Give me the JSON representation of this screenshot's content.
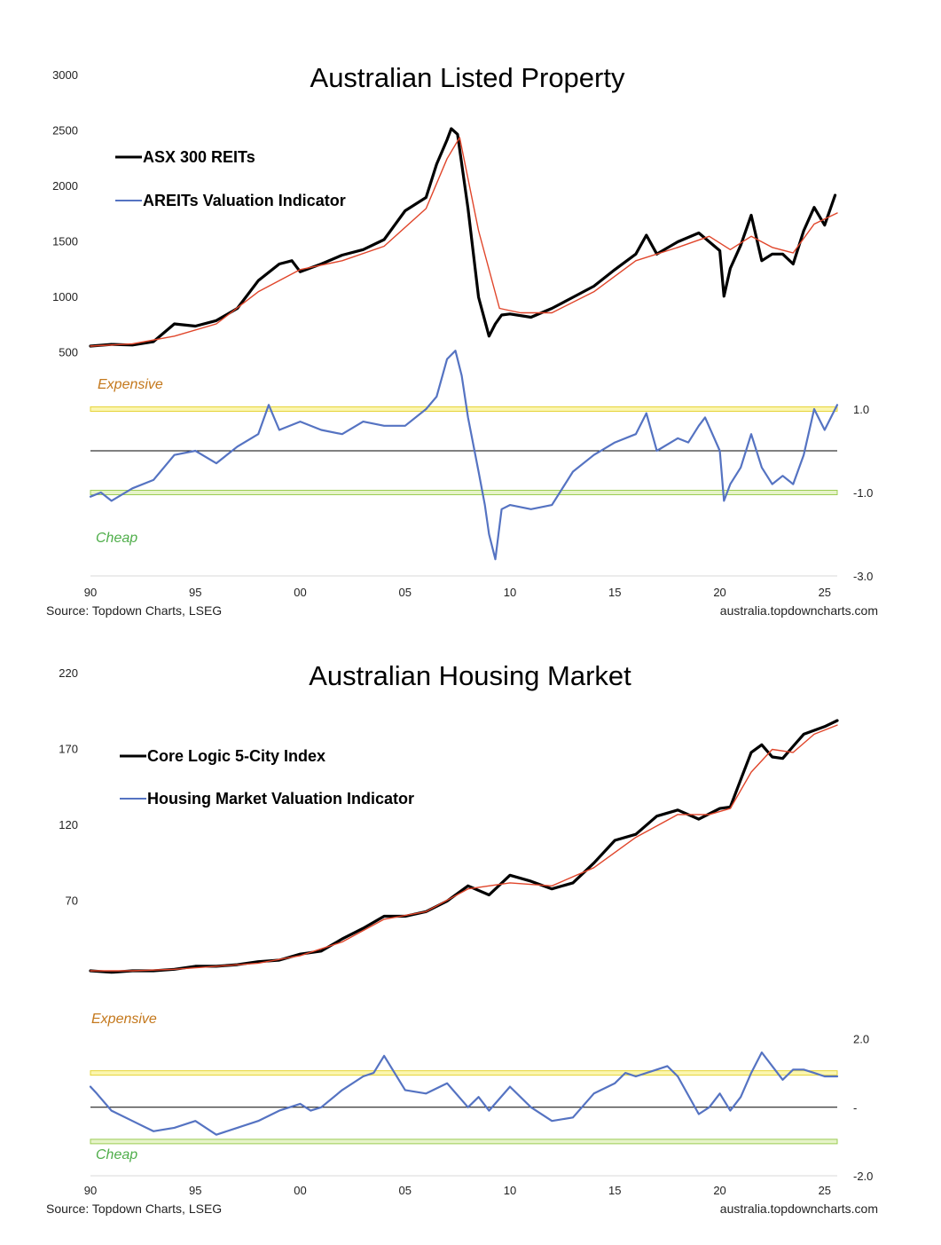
{
  "chart_data": [
    {
      "type": "line",
      "title": "Australian Listed Property",
      "x_ticks": [
        "90",
        "95",
        "00",
        "05",
        "10",
        "15",
        "20",
        "25"
      ],
      "x_range": [
        1990,
        2025.6
      ],
      "y_left_ticks": [
        "500",
        "1000",
        "1500",
        "2000",
        "2500",
        "3000"
      ],
      "y_left_range": [
        0,
        3000
      ],
      "y_right_ticks": [
        "1.0",
        "-1.0",
        "-3.0"
      ],
      "y_right_range": [
        -3,
        5
      ],
      "zones": {
        "expensive_label": "Expensive",
        "cheap_label": "Cheap",
        "expensive_level": 1.0,
        "cheap_level": -1.0
      },
      "legend": [
        "ASX 300 REITs",
        "AREITs Valuation Indicator"
      ],
      "series": [
        {
          "name": "ASX 300 REITs",
          "axis": "left",
          "x": [
            1990,
            1991,
            1992,
            1993,
            1994,
            1995,
            1996,
            1997,
            1998,
            1999,
            1999.6,
            2000,
            2001,
            2002,
            2003,
            2004,
            2005,
            2006,
            2006.5,
            2007,
            2007.2,
            2007.5,
            2008,
            2008.5,
            2009,
            2009.3,
            2009.6,
            2010,
            2011,
            2012,
            2013,
            2014,
            2015,
            2016,
            2016.5,
            2017,
            2018,
            2019,
            2020,
            2020.2,
            2020.5,
            2021,
            2021.5,
            2022,
            2022.5,
            2023,
            2023.5,
            2024,
            2024.5,
            2025,
            2025.5
          ],
          "values": [
            560,
            575,
            570,
            600,
            760,
            740,
            790,
            900,
            1150,
            1300,
            1330,
            1230,
            1300,
            1380,
            1430,
            1520,
            1780,
            1900,
            2200,
            2420,
            2520,
            2470,
            1800,
            1000,
            650,
            760,
            840,
            850,
            820,
            900,
            1000,
            1100,
            1250,
            1390,
            1560,
            1390,
            1500,
            1580,
            1420,
            1010,
            1260,
            1470,
            1740,
            1330,
            1390,
            1390,
            1300,
            1600,
            1810,
            1650,
            1920
          ]
        },
        {
          "name": "ASX 300 REITs trend",
          "axis": "left",
          "x": [
            1990,
            1992,
            1994,
            1996,
            1998,
            2000,
            2002,
            2004,
            2006,
            2007,
            2007.6,
            2008.5,
            2009.5,
            2010.5,
            2012,
            2014,
            2016,
            2018,
            2019.5,
            2020.5,
            2021.5,
            2022.5,
            2023.5,
            2024.5,
            2025.6
          ],
          "values": [
            560,
            580,
            650,
            760,
            1050,
            1250,
            1330,
            1460,
            1800,
            2250,
            2440,
            1600,
            900,
            860,
            860,
            1050,
            1330,
            1450,
            1550,
            1430,
            1550,
            1450,
            1400,
            1660,
            1760
          ]
        },
        {
          "name": "AREITs Valuation Indicator",
          "axis": "right",
          "x": [
            1990,
            1990.5,
            1991,
            1992,
            1993,
            1994,
            1995,
            1996,
            1997,
            1998,
            1998.5,
            1999,
            2000,
            2001,
            2002,
            2003,
            2004,
            2005,
            2006,
            2006.5,
            2007,
            2007.4,
            2007.7,
            2008,
            2008.5,
            2008.8,
            2009,
            2009.3,
            2009.6,
            2010,
            2011,
            2012,
            2013,
            2014,
            2015,
            2016,
            2016.5,
            2017,
            2018,
            2018.5,
            2019,
            2019.3,
            2020,
            2020.2,
            2020.5,
            2021,
            2021.5,
            2022,
            2022.5,
            2023,
            2023.5,
            2024,
            2024.5,
            2025,
            2025.6
          ],
          "values": [
            -1.1,
            -1.0,
            -1.2,
            -0.9,
            -0.7,
            -0.1,
            0.0,
            -0.3,
            0.1,
            0.4,
            1.1,
            0.5,
            0.7,
            0.5,
            0.4,
            0.7,
            0.6,
            0.6,
            1.0,
            1.3,
            2.2,
            2.4,
            1.8,
            0.8,
            -0.5,
            -1.3,
            -2.0,
            -2.6,
            -1.4,
            -1.3,
            -1.4,
            -1.3,
            -0.5,
            -0.1,
            0.2,
            0.4,
            0.9,
            0.0,
            0.3,
            0.2,
            0.6,
            0.8,
            0.0,
            -1.2,
            -0.8,
            -0.4,
            0.4,
            -0.4,
            -0.8,
            -0.6,
            -0.8,
            -0.1,
            1.0,
            0.5,
            1.1
          ]
        }
      ],
      "source": "Source: Topdown Charts, LSEG",
      "site": "australia.topdowncharts.com"
    },
    {
      "type": "line",
      "title": "Australian Housing Market",
      "x_ticks": [
        "90",
        "95",
        "00",
        "05",
        "10",
        "15",
        "20",
        "25"
      ],
      "x_range": [
        1990,
        2025.6
      ],
      "y_left_ticks": [
        "70",
        "120",
        "170",
        "220"
      ],
      "y_left_range": [
        0,
        220
      ],
      "y_right_ticks": [
        "2.0",
        "-",
        "-2.0"
      ],
      "y_right_range": [
        -2.0,
        6.0
      ],
      "zones": {
        "expensive_label": "Expensive",
        "cheap_label": "Cheap",
        "expensive_level": 1.0,
        "cheap_level": -1.0
      },
      "legend": [
        "Core Logic 5-City Index",
        "Housing Market Valuation Indicator"
      ],
      "series": [
        {
          "name": "Core Logic 5-City Index",
          "axis": "left",
          "x": [
            1990,
            1991,
            1992,
            1993,
            1994,
            1995,
            1996,
            1997,
            1998,
            1999,
            2000,
            2001,
            2002,
            2003,
            2004,
            2005,
            2006,
            2007,
            2008,
            2009,
            2010,
            2011,
            2012,
            2013,
            2014,
            2015,
            2016,
            2017,
            2018,
            2019,
            2020,
            2020.5,
            2021,
            2021.5,
            2022,
            2022.5,
            2023,
            2023.5,
            2024,
            2025,
            2025.6
          ],
          "values": [
            24,
            23,
            24,
            24,
            25,
            27,
            27,
            28,
            30,
            31,
            35,
            37,
            45,
            52,
            60,
            60,
            63,
            70,
            80,
            74,
            87,
            83,
            78,
            82,
            95,
            110,
            114,
            126,
            130,
            124,
            131,
            132,
            150,
            168,
            173,
            165,
            164,
            172,
            180,
            185,
            189
          ]
        },
        {
          "name": "Core Logic 5-City Index trend",
          "axis": "left",
          "x": [
            1990,
            1992,
            1994,
            1996,
            1998,
            2000,
            2002,
            2004,
            2006,
            2008,
            2010,
            2012,
            2014,
            2016,
            2018,
            2019.5,
            2020.5,
            2021.5,
            2022.5,
            2023.5,
            2024.5,
            2025.6
          ],
          "values": [
            24,
            24,
            25,
            27,
            29,
            34,
            43,
            58,
            63,
            78,
            82,
            80,
            92,
            112,
            127,
            127,
            131,
            155,
            170,
            168,
            180,
            186
          ]
        },
        {
          "name": "Housing Market Valuation Indicator",
          "axis": "right",
          "x": [
            1990,
            1990.3,
            1991,
            1992,
            1993,
            1994,
            1995,
            1996,
            1997,
            1998,
            1999,
            2000,
            2000.5,
            2001,
            2002,
            2003,
            2003.5,
            2004,
            2005,
            2006,
            2007,
            2008,
            2008.5,
            2009,
            2010,
            2011,
            2012,
            2013,
            2014,
            2015,
            2015.5,
            2016,
            2017,
            2017.5,
            2018,
            2019,
            2019.5,
            2020,
            2020.5,
            2021,
            2021.5,
            2022,
            2022.5,
            2023,
            2023.5,
            2024,
            2024.5,
            2025,
            2025.6
          ],
          "values": [
            0.6,
            0.4,
            -0.1,
            -0.4,
            -0.7,
            -0.6,
            -0.4,
            -0.8,
            -0.6,
            -0.4,
            -0.1,
            0.1,
            -0.1,
            0.0,
            0.5,
            0.9,
            1.0,
            1.5,
            0.5,
            0.4,
            0.7,
            0.0,
            0.3,
            -0.1,
            0.6,
            0.0,
            -0.4,
            -0.3,
            0.4,
            0.7,
            1.0,
            0.9,
            1.1,
            1.2,
            0.9,
            -0.2,
            0.0,
            0.4,
            -0.1,
            0.3,
            1.0,
            1.6,
            1.2,
            0.8,
            1.1,
            1.1,
            1.0,
            0.9,
            0.9
          ]
        }
      ],
      "source": "Source: Topdown Charts, LSEG",
      "site": "australia.topdowncharts.com"
    }
  ]
}
